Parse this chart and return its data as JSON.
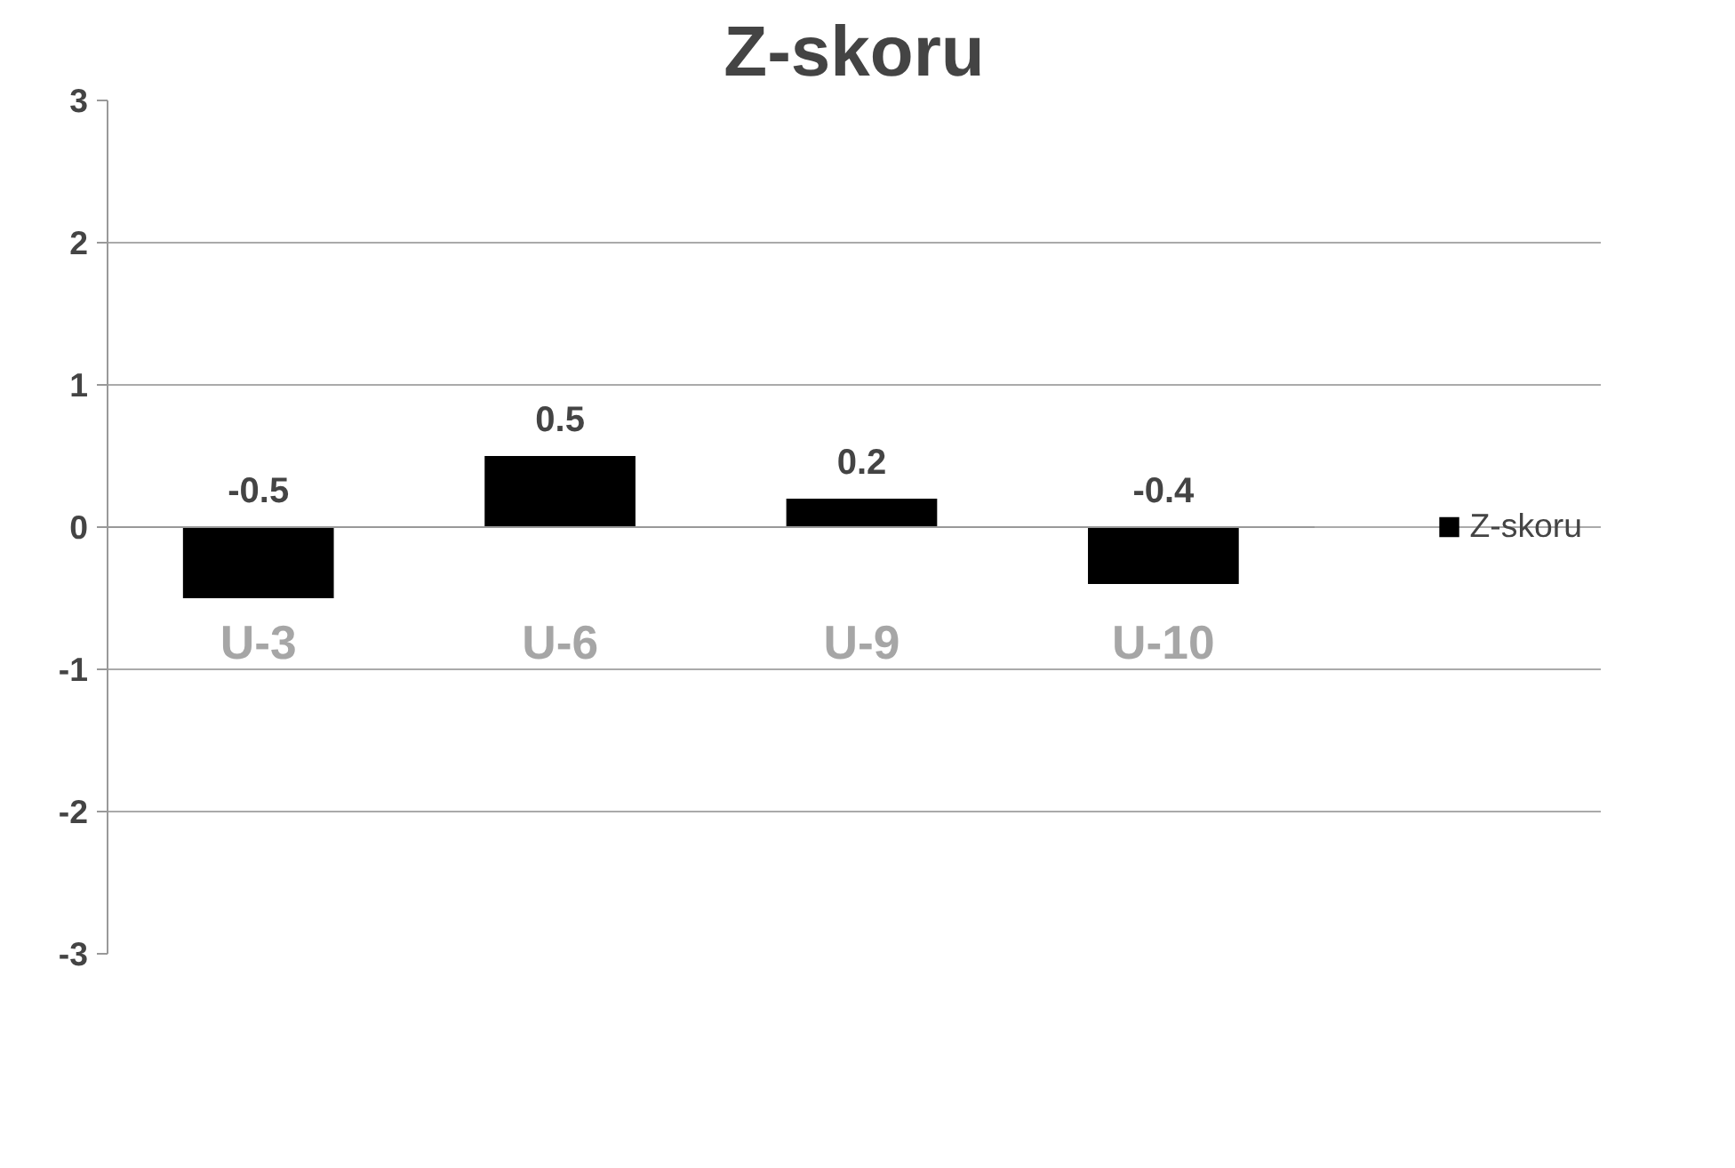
{
  "chart_data": {
    "type": "bar",
    "title": "Z-skoru",
    "categories": [
      "U-3",
      "U-6",
      "U-9",
      "U-10"
    ],
    "series": [
      {
        "name": "Z-skoru",
        "color": "#000000",
        "values": [
          -0.5,
          0.5,
          0.2,
          -0.4
        ]
      }
    ],
    "ylim": [
      -3,
      3
    ],
    "yticks": [
      -3,
      -2,
      -1,
      0,
      1,
      2,
      3
    ],
    "grid": "y",
    "legend": "right",
    "data_labels": true
  }
}
